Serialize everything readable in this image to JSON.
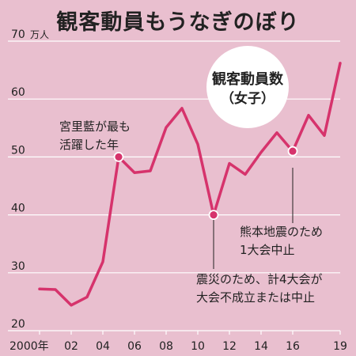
{
  "chart_data": {
    "type": "line",
    "title": "観客動員もうなぎのぼり",
    "y_unit_label": "万人",
    "x_first_tick_label": "2000年",
    "x_ticks": [
      2000,
      2002,
      2004,
      2006,
      2008,
      2010,
      2012,
      2014,
      2016,
      2019
    ],
    "x_tick_labels": [
      "2000年",
      "02",
      "04",
      "06",
      "08",
      "10",
      "12",
      "14",
      "16",
      "19"
    ],
    "y_ticks": [
      20,
      30,
      40,
      50,
      60,
      70
    ],
    "y_tick_labels": [
      "20",
      "30",
      "40",
      "50",
      "60",
      "70"
    ],
    "xlim": [
      2000,
      2019
    ],
    "ylim": [
      20,
      70
    ],
    "grid": true,
    "series": [
      {
        "name": "観客動員数（女子）",
        "color": "#d6336c",
        "x": [
          2000,
          2001,
          2002,
          2003,
          2004,
          2005,
          2006,
          2007,
          2008,
          2009,
          2010,
          2011,
          2012,
          2013,
          2014,
          2015,
          2016,
          2017,
          2018,
          2019
        ],
        "y": [
          27.2,
          27.1,
          24.4,
          25.8,
          31.9,
          50.0,
          47.3,
          47.6,
          55.1,
          58.4,
          52.2,
          40.0,
          48.9,
          47.0,
          50.8,
          54.2,
          51.0,
          57.2,
          53.7,
          66.2
        ]
      }
    ],
    "legend_label_line1": "観客動員数",
    "legend_label_line2": "（女子）",
    "annotations": [
      {
        "id": "a2005",
        "lines": [
          "宮里藍が最も",
          "活躍した年"
        ],
        "x": 2005,
        "y": 50.0
      },
      {
        "id": "a2011",
        "lines": [
          "震災のため、計4大会が",
          "大会不成立または中止"
        ],
        "x": 2011,
        "y": 40.0
      },
      {
        "id": "a2016",
        "lines": [
          "熊本地震のため",
          "1大会中止"
        ],
        "x": 2016,
        "y": 51.0
      }
    ]
  }
}
